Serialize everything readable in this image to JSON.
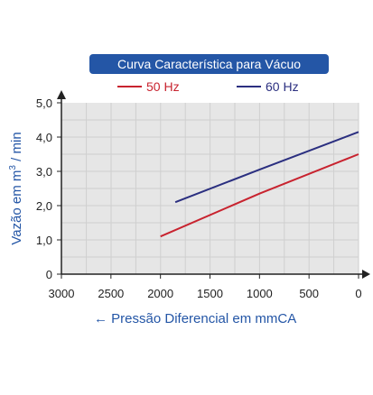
{
  "chart_data": {
    "type": "line",
    "title": "Curva Característica para Vácuo",
    "xlabel": "Pressão Diferencial em mmCA",
    "xlabel_arrow": "←",
    "ylabel_prefix": "Vazão em m",
    "ylabel_sup": "3",
    "ylabel_suffix": " / min",
    "x_reversed": true,
    "xlim": [
      3000,
      0
    ],
    "ylim": [
      0,
      5
    ],
    "x_ticks": [
      "3000",
      "2500",
      "2000",
      "1500",
      "1000",
      "500",
      "0"
    ],
    "x_tick_values": [
      3000,
      2500,
      2000,
      1500,
      1000,
      500,
      0
    ],
    "y_ticks": [
      "0",
      "1,0",
      "2,0",
      "3,0",
      "4,0",
      "5,0"
    ],
    "y_tick_values": [
      0,
      1,
      2,
      3,
      4,
      5
    ],
    "grid": true,
    "legend_position": "top",
    "series": [
      {
        "name": "50 Hz",
        "color": "#c8232f",
        "x": [
          2000,
          1000,
          0
        ],
        "y": [
          1.1,
          2.35,
          3.5
        ]
      },
      {
        "name": "60 Hz",
        "color": "#2b2f80",
        "x": [
          1850,
          1000,
          0
        ],
        "y": [
          2.1,
          3.05,
          4.15
        ]
      }
    ]
  },
  "colors": {
    "axis_label": "#2456a6",
    "grid": "#cfcfcf",
    "plot_bg": "#e6e6e6",
    "title_bg": "#2456a6"
  }
}
